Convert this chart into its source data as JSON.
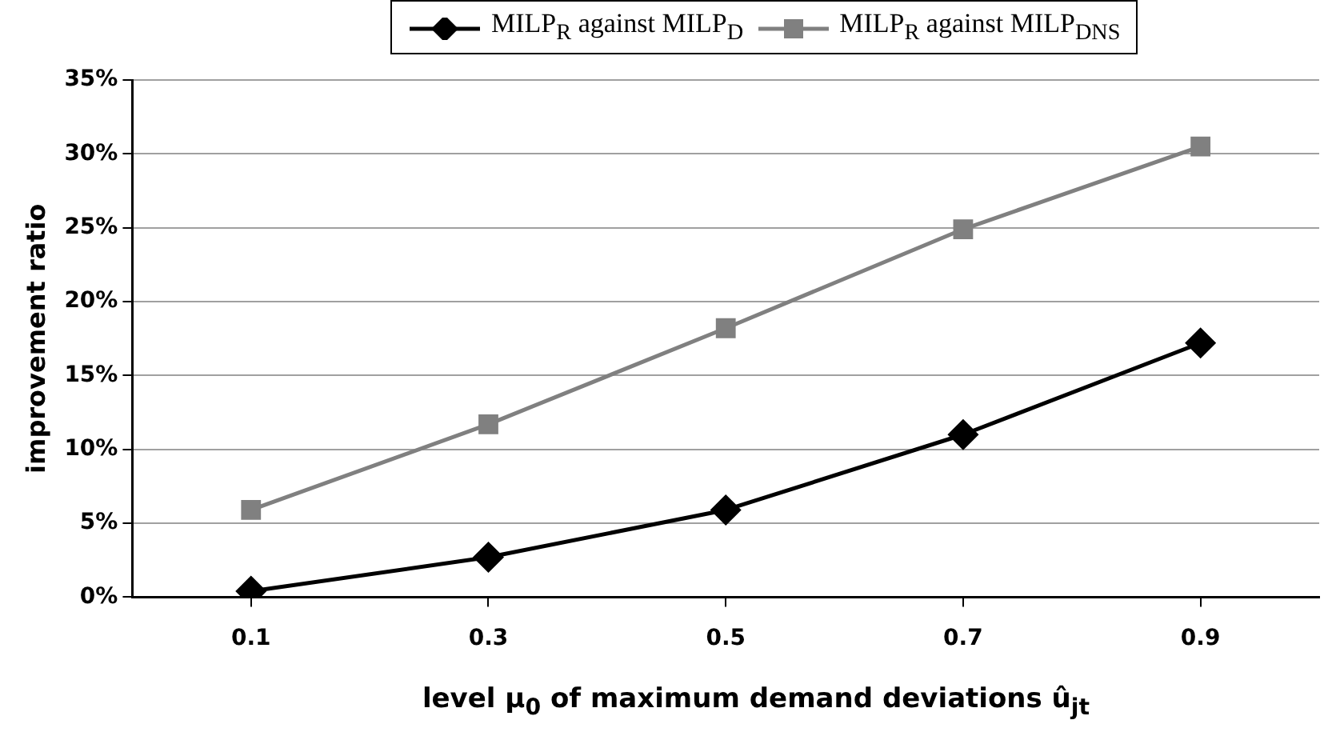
{
  "chart_data": {
    "type": "line",
    "xlabel": "level μ$_{0}$ of maximum demand deviations û$_{jt}$",
    "ylabel": "improvement ratio",
    "categories": [
      "0.1",
      "0.3",
      "0.5",
      "0.7",
      "0.9"
    ],
    "series": [
      {
        "name": "MILP$_{R}$ against MILP$_{D}$",
        "color": "#000000",
        "marker": "diamond",
        "values": [
          0.4,
          2.7,
          5.9,
          11.0,
          17.2
        ]
      },
      {
        "name": "MILP$_{R}$ against MILP$_{DNS}$",
        "color": "#808080",
        "marker": "square",
        "values": [
          5.9,
          11.7,
          18.2,
          24.9,
          30.5
        ]
      }
    ],
    "ylim": [
      0,
      35
    ],
    "yticks": [
      {
        "value": 0,
        "label": "0%"
      },
      {
        "value": 5,
        "label": "5%"
      },
      {
        "value": 10,
        "label": "10%"
      },
      {
        "value": 15,
        "label": "15%"
      },
      {
        "value": 20,
        "label": "20%"
      },
      {
        "value": 25,
        "label": "25%"
      },
      {
        "value": 30,
        "label": "30%"
      },
      {
        "value": 35,
        "label": "35%"
      }
    ],
    "grid": "y",
    "legend": "top",
    "line_style": "solid"
  }
}
